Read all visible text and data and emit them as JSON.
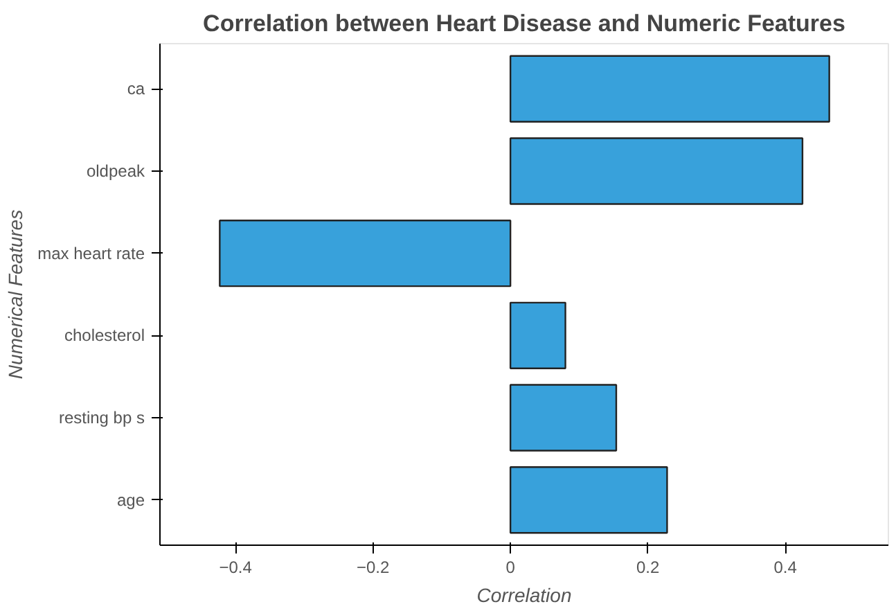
{
  "chart_data": {
    "type": "bar",
    "orientation": "horizontal",
    "title": "Correlation between Heart Disease and Numeric Features",
    "xlabel": "Correlation",
    "ylabel": "Numerical Features",
    "categories": [
      "ca",
      "oldpeak",
      "max heart rate",
      "cholesterol",
      "resting bp s",
      "age"
    ],
    "values": [
      0.464,
      0.425,
      -0.423,
      0.08,
      0.154,
      0.228
    ],
    "color": "#38a1db",
    "xlim": [
      -0.51,
      0.55
    ],
    "xticks": [
      {
        "value": -0.4,
        "label": "−0.4"
      },
      {
        "value": -0.2,
        "label": "−0.2"
      },
      0,
      0.2,
      0.4
    ],
    "grid": false
  }
}
